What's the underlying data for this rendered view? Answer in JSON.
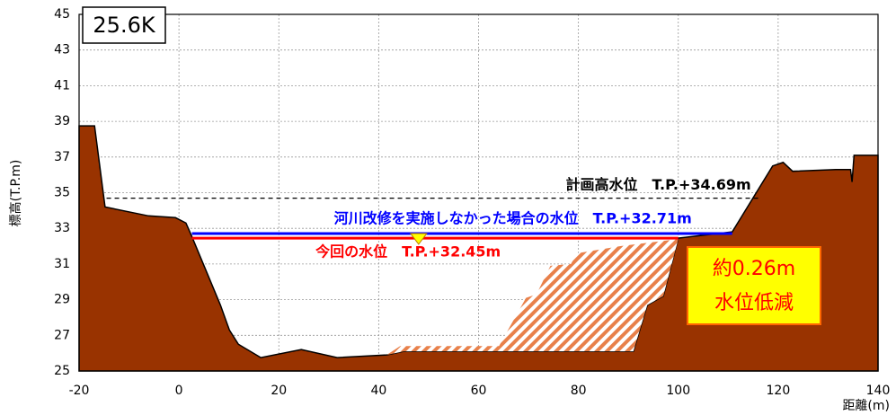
{
  "chart_data": {
    "type": "cross-section",
    "section_label": "25.6K",
    "ylabel": "標高(T.P.m)",
    "xlabel": "距離(m)",
    "xlim": [
      -20,
      140
    ],
    "ylim": [
      25,
      45
    ],
    "xticks": [
      -20,
      0,
      20,
      40,
      60,
      80,
      100,
      120,
      140
    ],
    "yticks": [
      25,
      27,
      29,
      31,
      33,
      35,
      37,
      39,
      41,
      43,
      45
    ],
    "grid": true,
    "ground": {
      "color": "#993300",
      "x": [
        -20,
        -16.9,
        -14.8,
        -6.1,
        -0.7,
        1.4,
        2.5,
        8.3,
        10.1,
        11.9,
        16.4,
        24.5,
        31.7,
        41.6,
        45,
        91,
        93.8,
        97,
        100,
        110.8,
        118.9,
        121,
        122.9,
        131.5,
        134.5,
        134.8,
        135.2,
        140
      ],
      "y": [
        38.75,
        38.75,
        34.2,
        33.7,
        33.6,
        33.3,
        32.6,
        28.7,
        27.3,
        26.5,
        25.75,
        26.2,
        25.75,
        25.9,
        26.1,
        26.1,
        28.7,
        29.2,
        32.45,
        32.8,
        36.5,
        36.7,
        36.2,
        36.3,
        36.3,
        35.6,
        37.1,
        37.1
      ]
    },
    "excavation": {
      "color": "#e8804a",
      "x": [
        41.6,
        44.3,
        64.1,
        69.5,
        71.6,
        74.4,
        78.5,
        79.7,
        88.4,
        100,
        97,
        93.8,
        91,
        45
      ],
      "y": [
        25.9,
        26.4,
        26.4,
        29.1,
        29.3,
        30.9,
        31.0,
        31.6,
        32.0,
        32.4,
        29.2,
        28.7,
        26.1,
        26.1
      ]
    },
    "levels": [
      {
        "value": 34.69,
        "label": "計画高水位　T.P.+34.69m",
        "x": [
          -14.5,
          116
        ],
        "color": "#000000",
        "dashed": true
      },
      {
        "value": 32.71,
        "label": "河川改修を実施しなかった場合の水位　T.P.+32.71m",
        "x": [
          2.6,
          110.8
        ],
        "color": "#0000ff",
        "dashed": false
      },
      {
        "value": 32.45,
        "label": "今回の水位　T.P.+32.45m",
        "x": [
          2.6,
          100
        ],
        "color": "#ff0000",
        "dashed": false
      }
    ],
    "marker_x": 48,
    "reduction_label": [
      "約0.26m",
      "水位低減"
    ]
  }
}
